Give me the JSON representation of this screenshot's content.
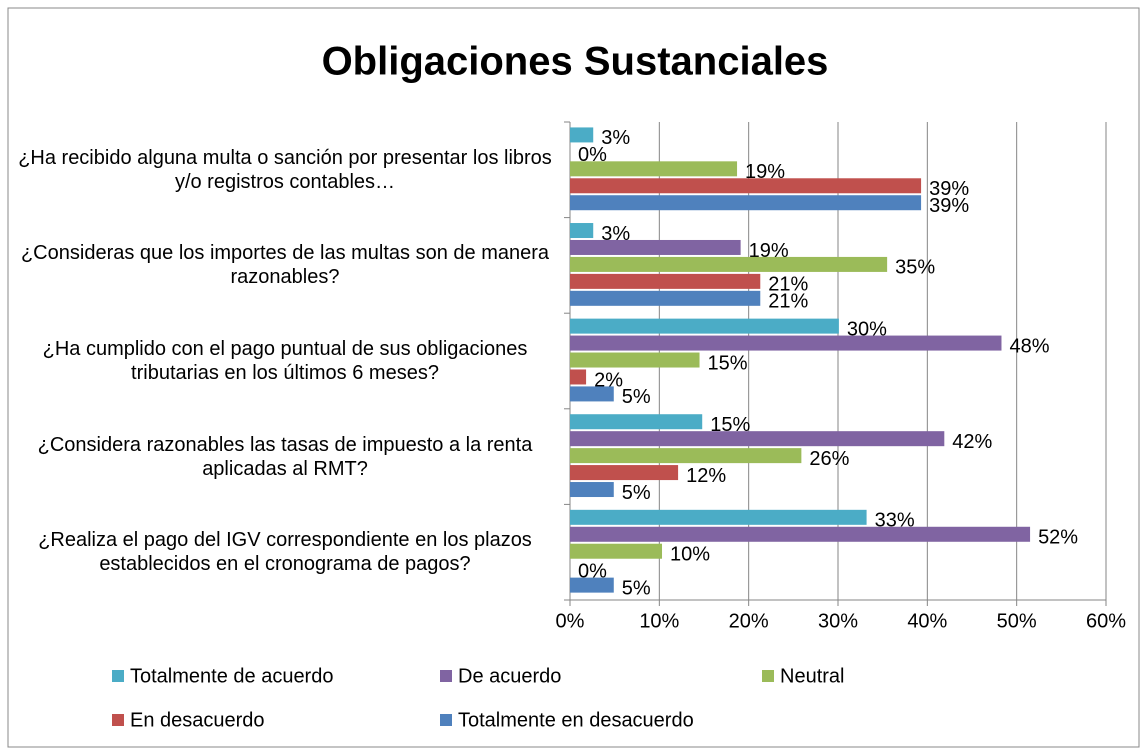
{
  "chart_data": {
    "type": "bar",
    "orientation": "horizontal",
    "title": "Obligaciones Sustanciales",
    "categories": [
      "¿Ha recibido alguna multa o sanción por presentar los libros y/o registros contables…",
      "¿Consideras que los importes de las multas son de manera razonables?",
      "¿Ha cumplido con el pago puntual de sus obligaciones tributarias en los últimos 6 meses?",
      "¿Considera razonables las tasas de impuesto a la renta aplicadas al RMT?",
      "¿Realiza el pago del IGV correspondiente en los plazos establecidos en el cronograma de pagos?"
    ],
    "series": [
      {
        "name": "Totalmente de acuerdo",
        "color": "#4bacc6",
        "values": [
          2.6,
          2.6,
          30.1,
          14.8,
          33.2
        ],
        "value_labels": [
          "3%",
          "3%",
          "30%",
          "15%",
          "33%"
        ]
      },
      {
        "name": "De acuerdo",
        "color": "#8064a2",
        "values": [
          0,
          19.1,
          48.3,
          41.9,
          51.5
        ],
        "value_labels": [
          "0%",
          "19%",
          "48%",
          "42%",
          "52%"
        ]
      },
      {
        "name": "Neutral",
        "color": "#9bbb59",
        "values": [
          18.7,
          35.5,
          14.5,
          25.9,
          10.3
        ],
        "value_labels": [
          "19%",
          "35%",
          "15%",
          "26%",
          "10%"
        ]
      },
      {
        "name": "En desacuerdo",
        "color": "#c0504d",
        "values": [
          39.3,
          21.3,
          1.8,
          12.1,
          0
        ],
        "value_labels": [
          "39%",
          "21%",
          "2%",
          "12%",
          "0%"
        ]
      },
      {
        "name": "Totalmente en desacuerdo",
        "color": "#4f81bd",
        "values": [
          39.3,
          21.3,
          4.9,
          4.9,
          4.9
        ],
        "value_labels": [
          "39%",
          "21%",
          "5%",
          "5%",
          "5%"
        ]
      }
    ],
    "xlim": [
      0,
      60
    ],
    "xticks": [
      {
        "value": 0,
        "label": "0%"
      },
      {
        "value": 10,
        "label": "10%"
      },
      {
        "value": 20,
        "label": "20%"
      },
      {
        "value": 30,
        "label": "30%"
      },
      {
        "value": 40,
        "label": "40%"
      },
      {
        "value": 50,
        "label": "50%"
      },
      {
        "value": 60,
        "label": "60%"
      }
    ],
    "grid": true,
    "legend": "bottom"
  }
}
